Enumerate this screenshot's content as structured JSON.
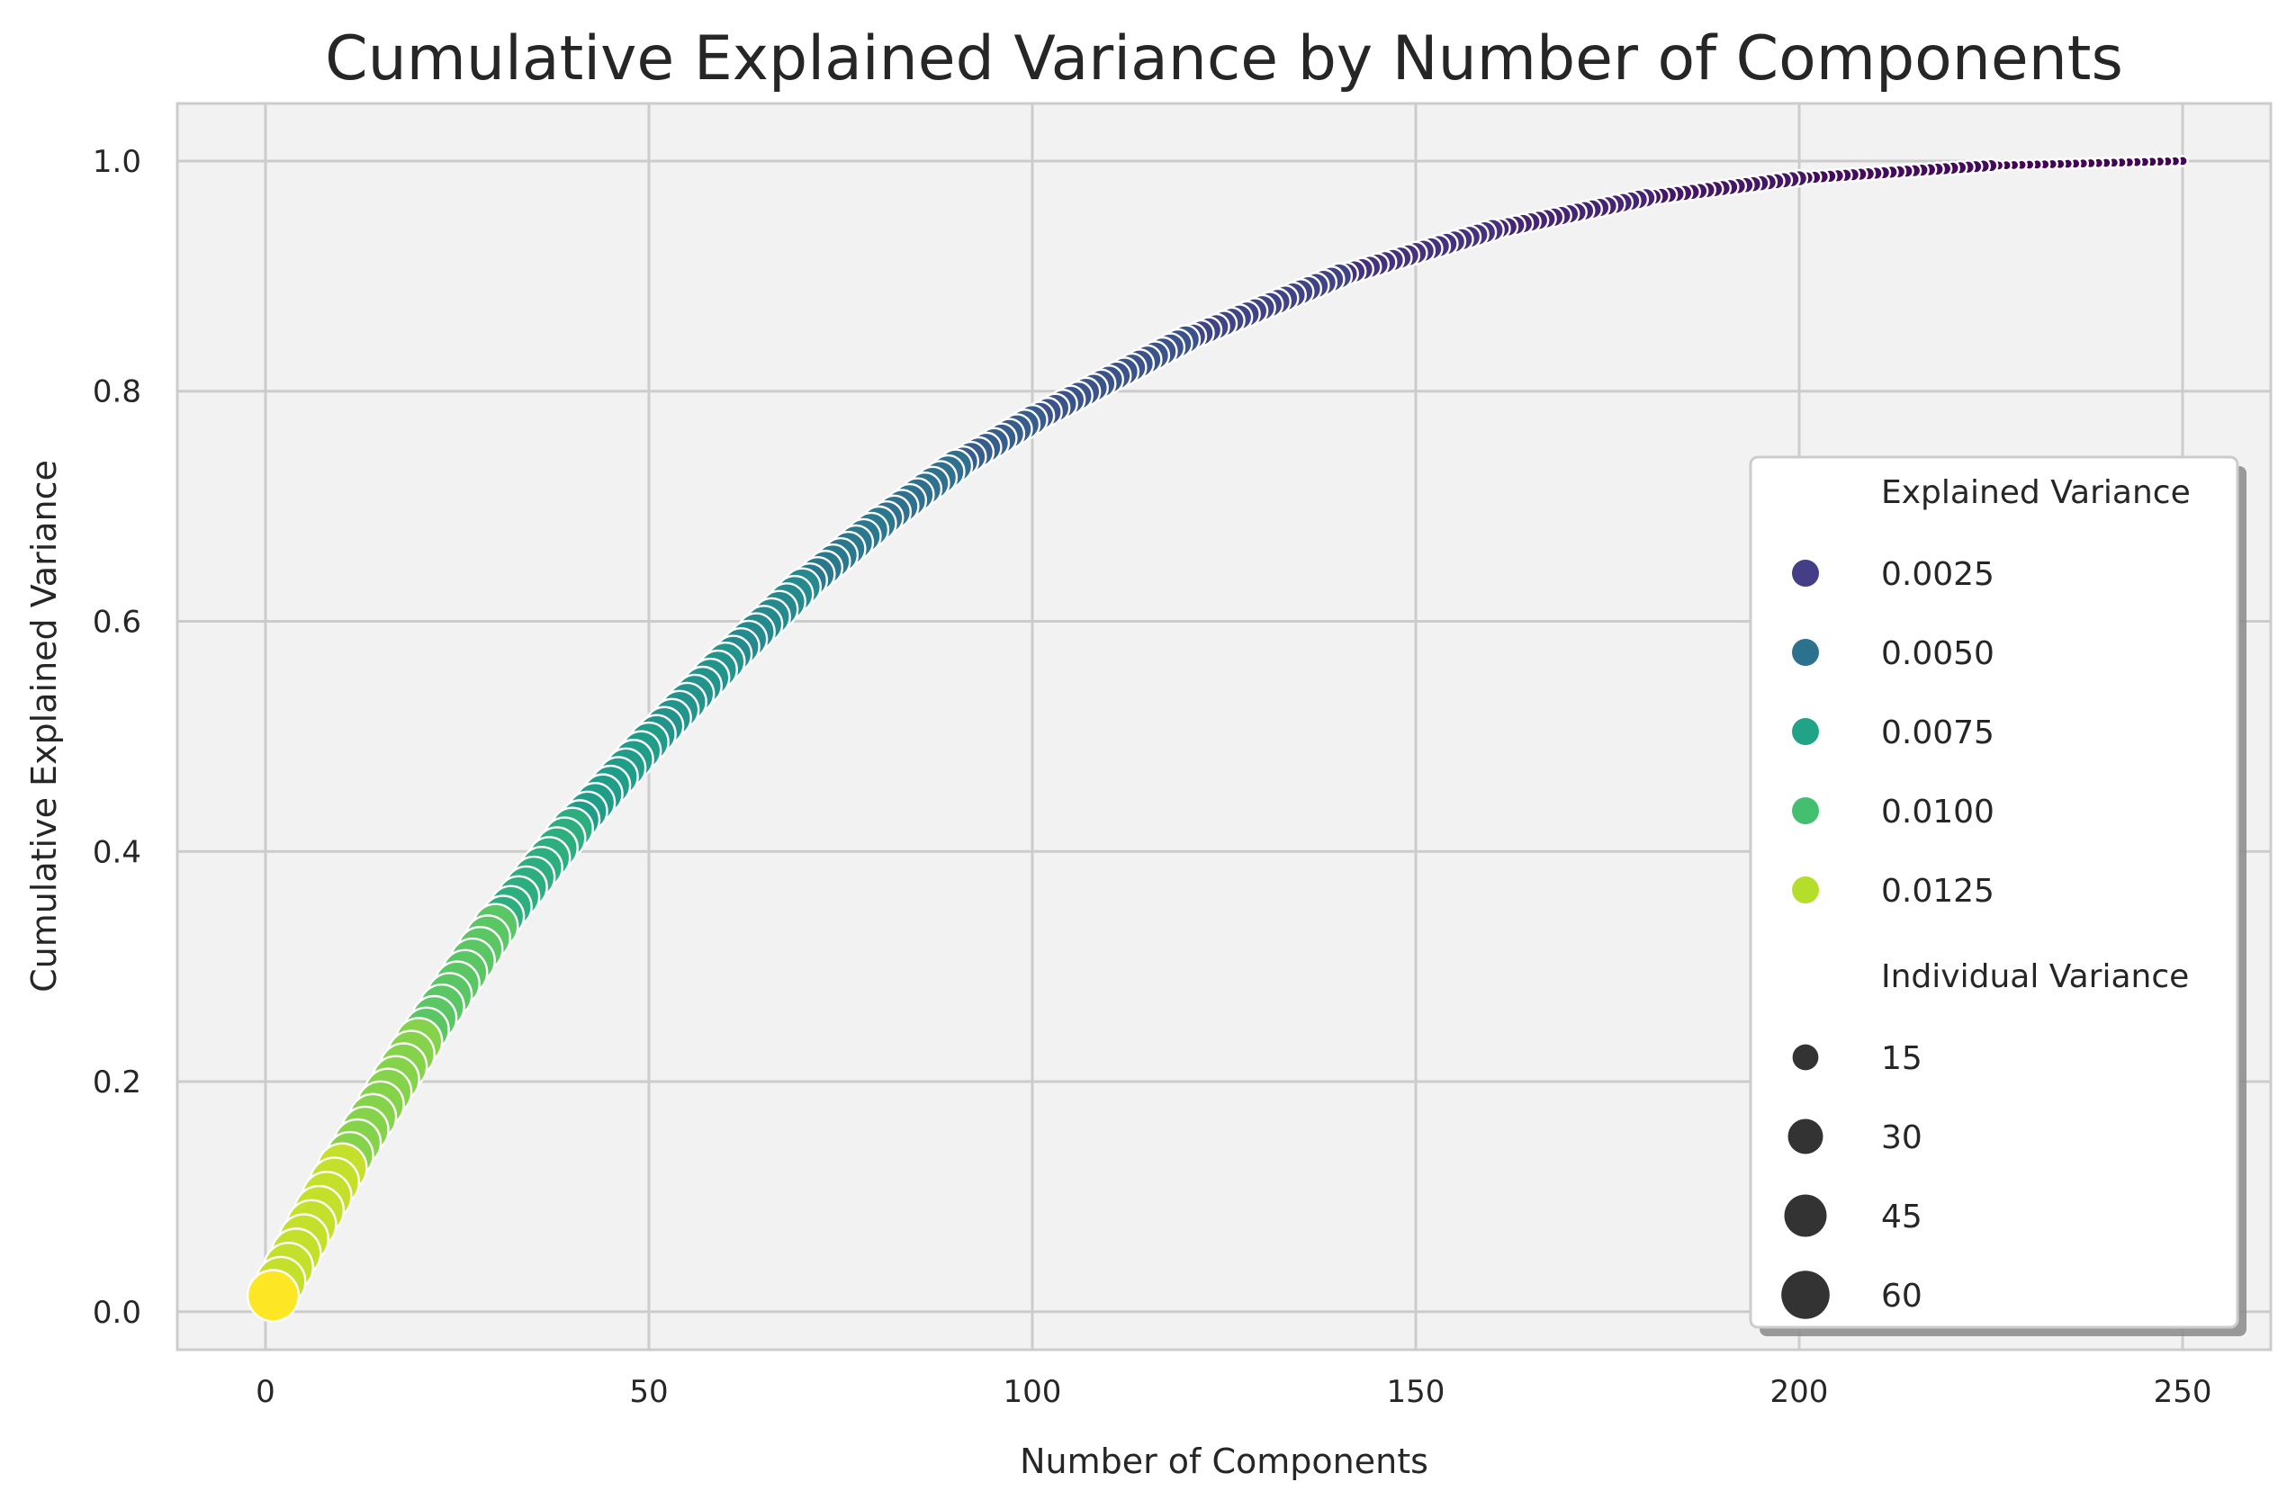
{
  "chart_data": {
    "type": "scatter",
    "title": "Cumulative Explained Variance by Number of Components",
    "xlabel": "Number of Components",
    "ylabel": "Cumulative Explained Variance",
    "xlim": [
      -11.5,
      261.5
    ],
    "ylim": [
      -0.033,
      1.05
    ],
    "xticks": [
      "0",
      "50",
      "100",
      "150",
      "200",
      "250"
    ],
    "xtick_values": [
      0,
      50,
      100,
      150,
      200,
      250
    ],
    "yticks": [
      "0.0",
      "0.2",
      "0.4",
      "0.6",
      "0.8",
      "1.0"
    ],
    "ytick_values": [
      0.0,
      0.2,
      0.4,
      0.6,
      0.8,
      1.0
    ],
    "grid": true,
    "background_color": "#f2f2f2",
    "grid_color": "#cccccc",
    "colormap": "viridis",
    "hue_variable": "Explained Variance",
    "size_variable": "Individual Variance",
    "series": {
      "x_start": 1,
      "x_end": 250,
      "x_step": 1,
      "cumulative_explained_variance_sampled": [
        {
          "x": 1,
          "y": 0.014
        },
        {
          "x": 10,
          "y": 0.125
        },
        {
          "x": 20,
          "y": 0.235
        },
        {
          "x": 30,
          "y": 0.335
        },
        {
          "x": 40,
          "y": 0.42
        },
        {
          "x": 50,
          "y": 0.495
        },
        {
          "x": 60,
          "y": 0.565
        },
        {
          "x": 70,
          "y": 0.63
        },
        {
          "x": 80,
          "y": 0.685
        },
        {
          "x": 90,
          "y": 0.735
        },
        {
          "x": 100,
          "y": 0.775
        },
        {
          "x": 120,
          "y": 0.845
        },
        {
          "x": 140,
          "y": 0.9
        },
        {
          "x": 160,
          "y": 0.94
        },
        {
          "x": 180,
          "y": 0.968
        },
        {
          "x": 200,
          "y": 0.985
        },
        {
          "x": 225,
          "y": 0.996
        },
        {
          "x": 250,
          "y": 1.0
        }
      ],
      "explained_variance_range": [
        0.0001,
        0.0135
      ],
      "individual_variance_range": [
        1,
        68
      ]
    },
    "legend": {
      "placement": "center-right",
      "hue_title": "Explained Variance",
      "hue_entries": [
        {
          "label": "0.0025",
          "color": "#433e85"
        },
        {
          "label": "0.0050",
          "color": "#2c728e"
        },
        {
          "label": "0.0075",
          "color": "#20a386"
        },
        {
          "label": "0.0100",
          "color": "#44bf70"
        },
        {
          "label": "0.0125",
          "color": "#b5de2b"
        }
      ],
      "size_title": "Individual Variance",
      "size_entries": [
        {
          "label": "15",
          "value": 15
        },
        {
          "label": "30",
          "value": 30
        },
        {
          "label": "45",
          "value": 45
        },
        {
          "label": "60",
          "value": 60
        }
      ],
      "size_marker_color": "#333333"
    }
  }
}
